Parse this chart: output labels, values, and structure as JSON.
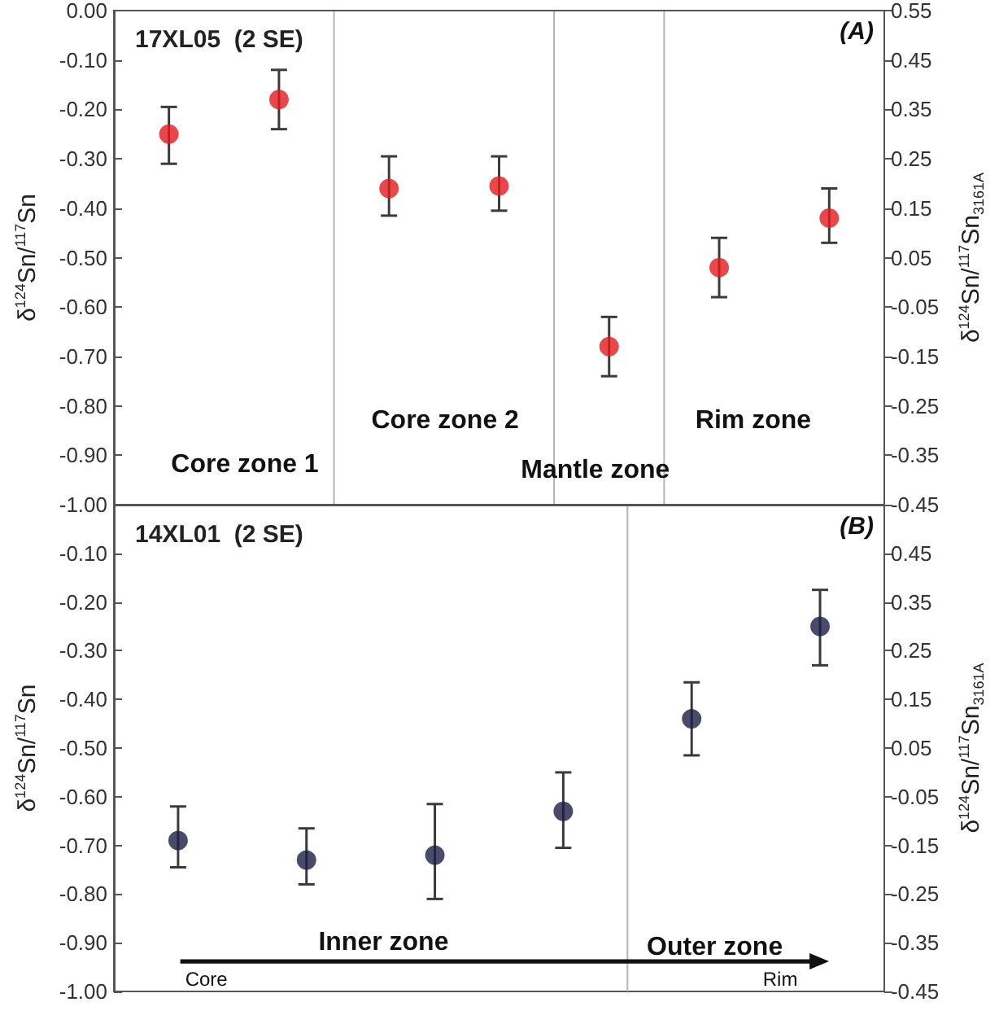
{
  "chart_data": [
    {
      "type": "scatter",
      "title": "17XL05  (2 SE)",
      "ylabel": "δ$^{124}$Sn/$^{117}$Sn",
      "y2label": "δ$^{124}$Sn/$^{117}$Sn$_{3161A}$",
      "categories": [
        null,
        null,
        null,
        null,
        null,
        null,
        null
      ],
      "values": [
        -0.25,
        -0.18,
        -0.36,
        -0.355,
        -0.68,
        -0.52,
        -0.42
      ],
      "errors": [
        [
          -0.31,
          -0.195
        ],
        [
          -0.24,
          -0.12
        ],
        [
          -0.415,
          -0.295
        ],
        [
          -0.405,
          -0.295
        ],
        [
          -0.74,
          -0.62
        ],
        [
          -0.58,
          -0.46
        ],
        [
          -0.47,
          -0.36
        ]
      ],
      "color": "#e3191c",
      "marker": "circle",
      "tick_labels": "y",
      "ylim": [
        -1,
        0
      ],
      "yticks": [
        {
          "value": -1,
          "label": "-1.00"
        },
        {
          "value": -0.9,
          "label": "-0.90"
        },
        {
          "value": -0.8,
          "label": "-0.80"
        },
        {
          "value": -0.7,
          "label": "-0.70"
        },
        {
          "value": -0.6,
          "label": "-0.60"
        },
        {
          "value": -0.5,
          "label": "-0.50"
        },
        {
          "value": -0.4,
          "label": "-0.40"
        },
        {
          "value": -0.3,
          "label": "-0.30"
        },
        {
          "value": -0.2,
          "label": "-0.20"
        },
        {
          "value": -0.1,
          "label": "-0.10"
        },
        {
          "value": 0,
          "label": "0.00"
        }
      ],
      "y2lim": [
        -0.45,
        0.55
      ],
      "y2ticks": [
        -0.45,
        -0.35,
        -0.25,
        -0.15,
        -0.05,
        0.05,
        0.15,
        0.25,
        0.35,
        0.45,
        0.55
      ],
      "annotations": [
        "(A)",
        "Core zone 1",
        "Core zone 2",
        "Mantle zone",
        "Rim zone"
      ]
    },
    {
      "type": "scatter",
      "title": "14XL01  (2 SE)",
      "ylabel": "δ$^{124}$Sn/$^{117}$Sn",
      "y2label": "δ$^{124}$Sn/$^{117}$Sn$_{3161A}$",
      "categories": [
        null,
        null,
        null,
        null,
        null,
        null
      ],
      "values": [
        -0.69,
        -0.73,
        -0.72,
        -0.63,
        -0.44,
        -0.25
      ],
      "errors": [
        [
          -0.745,
          -0.62
        ],
        [
          -0.78,
          -0.665
        ],
        [
          -0.81,
          -0.615
        ],
        [
          -0.705,
          -0.55
        ],
        [
          -0.515,
          -0.365
        ],
        [
          -0.33,
          -0.175
        ]
      ],
      "color": "#1c1e45",
      "marker": "circle",
      "tick_labels": "y",
      "ylim": [
        -1,
        0
      ],
      "yticks": [
        {
          "value": -1,
          "label": "-1.00"
        },
        {
          "value": -0.9,
          "label": "-0.90"
        },
        {
          "value": -0.8,
          "label": "-0.80"
        },
        {
          "value": -0.7,
          "label": "-0.70"
        },
        {
          "value": -0.6,
          "label": "-0.60"
        },
        {
          "value": -0.5,
          "label": "-0.50"
        },
        {
          "value": -0.4,
          "label": "-0.40"
        },
        {
          "value": -0.3,
          "label": "-0.30"
        },
        {
          "value": -0.2,
          "label": "-0.20"
        },
        {
          "value": -0.1,
          "label": "-0.10"
        }
      ],
      "y2lim": [
        -0.45,
        0.55
      ],
      "y2ticks": [
        -0.45,
        -0.35,
        -0.25,
        -0.15,
        -0.05,
        0.05,
        0.15,
        0.25,
        0.35,
        0.45
      ],
      "annotations": [
        "(B)",
        "Inner zone",
        "Outer zone",
        "Core",
        "Rim"
      ]
    }
  ]
}
